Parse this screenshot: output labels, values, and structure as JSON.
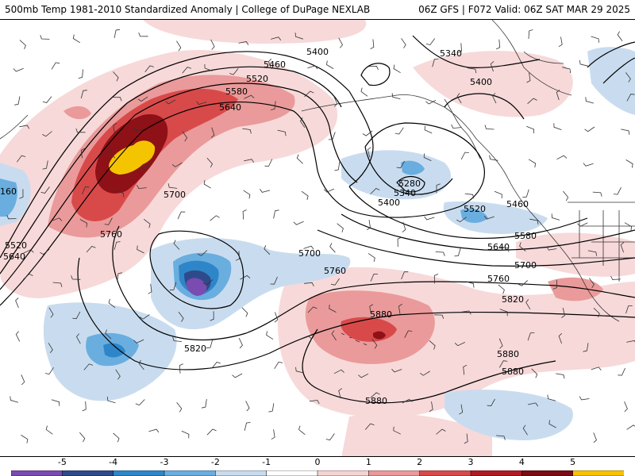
{
  "header": {
    "left_title": "500mb Temp 1981-2010 Standardized Anomaly | College of DuPage NEXLAB",
    "right_title": "06Z GFS | F072 Valid: 06Z SAT MAR 29 2025"
  },
  "map": {
    "contour_labels": [
      "5400",
      "5340",
      "5460",
      "5520",
      "5580",
      "5640",
      "5400",
      "5280",
      "5340",
      "5400",
      "5520",
      "5460",
      "5580",
      "5640",
      "5700",
      "5760",
      "5700",
      "5700",
      "5760",
      "5760",
      "5820",
      "5820",
      "5880",
      "5880",
      "5880",
      "5880",
      "5640",
      "5520",
      "160"
    ]
  },
  "colorbar": {
    "ticks": [
      "-5",
      "-4",
      "-3",
      "-2",
      "-1",
      "0",
      "1",
      "2",
      "3",
      "4",
      "5"
    ],
    "colors": [
      "#7a4bb0",
      "#2f4a8a",
      "#2e86c8",
      "#6aaee0",
      "#c9dcef",
      "#ffffff",
      "#f6d3d3",
      "#ea9a9a",
      "#d84a4a",
      "#b01c24",
      "#7b0d12",
      "#f5c400"
    ]
  }
}
